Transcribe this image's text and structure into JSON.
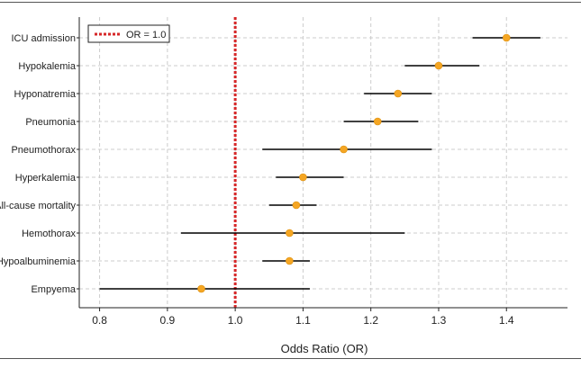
{
  "chart_data": {
    "type": "scatter",
    "subtype": "forest-plot",
    "xlabel": "Odds Ratio (OR)",
    "xlim": [
      0.77,
      1.49
    ],
    "xticks": [
      "0.8",
      "0.9",
      "1.0",
      "1.1",
      "1.2",
      "1.3",
      "1.4"
    ],
    "grid": true,
    "reference_line": {
      "x": 1.0,
      "label": "OR = 1.0",
      "color": "#d62728",
      "style": "dotted"
    },
    "legend_position": "top-left",
    "point_color": "#f5a623",
    "ci_color": "#000000",
    "categories": [
      "ICU admission",
      "Hypokalemia",
      "Hyponatremia",
      "Pneumonia",
      "Pneumothorax",
      "Hyperkalemia",
      "All-cause mortality",
      "Hemothorax",
      "Hypoalbuminemia",
      "Empyema"
    ],
    "or": [
      1.4,
      1.3,
      1.24,
      1.21,
      1.16,
      1.1,
      1.09,
      1.08,
      1.08,
      0.95
    ],
    "ci_lower": [
      1.35,
      1.25,
      1.19,
      1.16,
      1.04,
      1.06,
      1.05,
      0.92,
      1.04,
      0.8
    ],
    "ci_upper": [
      1.45,
      1.36,
      1.29,
      1.27,
      1.29,
      1.16,
      1.12,
      1.25,
      1.11,
      1.11
    ]
  }
}
